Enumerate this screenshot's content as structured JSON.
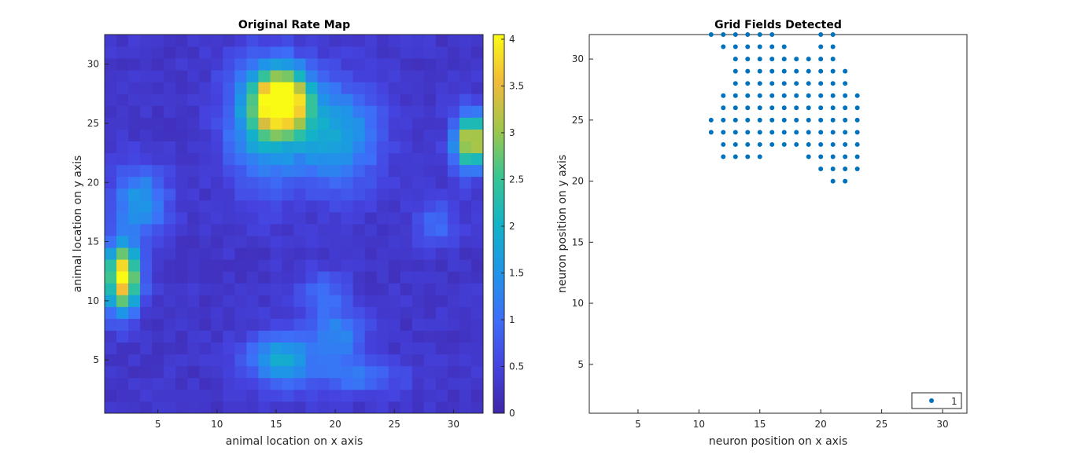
{
  "chart_data": [
    {
      "type": "heatmap",
      "title": "Original Rate Map",
      "xlabel": "animal location on x axis",
      "ylabel": "animal location on y axis",
      "xlim": [
        0.5,
        32.5
      ],
      "ylim": [
        0.5,
        32.5
      ],
      "xticks": [
        5,
        10,
        15,
        20,
        25,
        30
      ],
      "yticks": [
        5,
        10,
        15,
        20,
        25,
        30
      ],
      "colorbar": {
        "min": 0,
        "max": 4.05,
        "ticks": [
          "0",
          "0.5",
          "1",
          "1.5",
          "2",
          "2.5",
          "3",
          "3.5",
          "4"
        ]
      },
      "hotspots": [
        {
          "x": 15.5,
          "y": 27,
          "peak": 3.8,
          "sx": 1.6,
          "sy": 1.8
        },
        {
          "x": 14,
          "y": 25,
          "peak": 1.6,
          "sx": 2.2,
          "sy": 3.5
        },
        {
          "x": 20,
          "y": 24,
          "peak": 1.5,
          "sx": 2.5,
          "sy": 3.0
        },
        {
          "x": 2,
          "y": 12,
          "peak": 3.8,
          "sx": 1.0,
          "sy": 2.0
        },
        {
          "x": 3.5,
          "y": 18.5,
          "peak": 1.3,
          "sx": 1.6,
          "sy": 2.0
        },
        {
          "x": 31.5,
          "y": 23.5,
          "peak": 3.3,
          "sx": 1.0,
          "sy": 1.6
        },
        {
          "x": 15.5,
          "y": 5,
          "peak": 1.6,
          "sx": 2.0,
          "sy": 1.5
        },
        {
          "x": 20.5,
          "y": 7,
          "peak": 1.0,
          "sx": 1.5,
          "sy": 1.5
        },
        {
          "x": 19,
          "y": 10.5,
          "peak": 0.7,
          "sx": 1.5,
          "sy": 1.5
        },
        {
          "x": 28.5,
          "y": 16.5,
          "peak": 0.7,
          "sx": 1.3,
          "sy": 1.3
        },
        {
          "x": 22,
          "y": 3.5,
          "peak": 0.8,
          "sx": 2.5,
          "sy": 1.0
        }
      ],
      "baseline": 0.3
    },
    {
      "type": "scatter",
      "title": "Grid Fields Detected",
      "xlabel": "neuron position on x axis",
      "ylabel": "neuron position on y axis",
      "xlim": [
        1,
        32
      ],
      "ylim": [
        1,
        32
      ],
      "xticks": [
        5,
        10,
        15,
        20,
        25,
        30
      ],
      "yticks": [
        5,
        10,
        15,
        20,
        25,
        30
      ],
      "legend": "1",
      "legend_location": "bottom-right",
      "color": "#0072bd",
      "rows": [
        {
          "y": 32,
          "x": [
            11,
            12,
            13,
            14,
            15,
            16,
            20,
            21
          ]
        },
        {
          "y": 31,
          "x": [
            12,
            13,
            14,
            15,
            16,
            17,
            20,
            21
          ]
        },
        {
          "y": 30,
          "x": [
            13,
            14,
            15,
            16,
            17,
            18,
            19,
            20,
            21
          ]
        },
        {
          "y": 29,
          "x": [
            13,
            14,
            15,
            16,
            17,
            18,
            19,
            20,
            21,
            22
          ]
        },
        {
          "y": 28,
          "x": [
            13,
            14,
            15,
            16,
            17,
            18,
            19,
            20,
            21,
            22
          ]
        },
        {
          "y": 27,
          "x": [
            12,
            13,
            14,
            15,
            16,
            17,
            18,
            19,
            20,
            21,
            22,
            23
          ]
        },
        {
          "y": 26,
          "x": [
            12,
            13,
            14,
            15,
            16,
            17,
            18,
            19,
            20,
            21,
            22,
            23
          ]
        },
        {
          "y": 25,
          "x": [
            11,
            12,
            13,
            14,
            15,
            16,
            17,
            18,
            19,
            20,
            21,
            22,
            23
          ]
        },
        {
          "y": 24,
          "x": [
            11,
            12,
            13,
            14,
            15,
            16,
            17,
            18,
            19,
            20,
            21,
            22,
            23
          ]
        },
        {
          "y": 23,
          "x": [
            12,
            13,
            14,
            15,
            16,
            17,
            18,
            19,
            20,
            21,
            22,
            23
          ]
        },
        {
          "y": 22,
          "x": [
            12,
            13,
            14,
            15,
            19,
            20,
            21,
            22,
            23
          ]
        },
        {
          "y": 21,
          "x": [
            20,
            21,
            22,
            23
          ]
        },
        {
          "y": 20,
          "x": [
            21,
            22
          ]
        }
      ]
    }
  ]
}
